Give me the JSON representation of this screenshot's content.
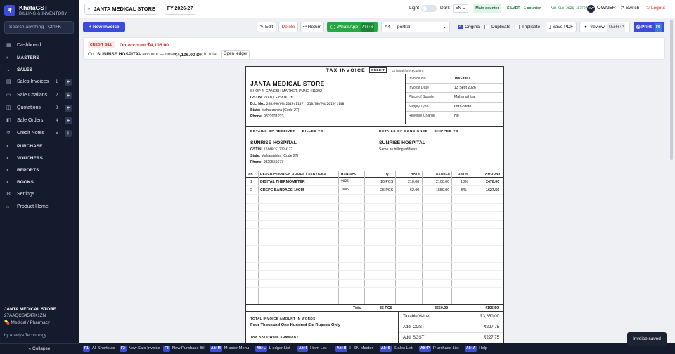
{
  "app": {
    "name": "KhataGST",
    "subtitle": "BILLING & INVENTORY",
    "logo_glyph": "₹"
  },
  "search": {
    "placeholder": "Search anything",
    "shortcut": "Ctrl+K"
  },
  "sidebar": {
    "items": [
      {
        "label": "Dashboard",
        "icon": "grid-icon"
      },
      {
        "label": "MASTERS",
        "section": true
      },
      {
        "label": "SALES",
        "section": true,
        "open": true
      },
      {
        "label": "Sales Invoices",
        "count": "1",
        "icon": "invoice-icon"
      },
      {
        "label": "Sale Challans",
        "count": "2",
        "icon": "challan-icon"
      },
      {
        "label": "Quotations",
        "count": "3",
        "icon": "quotation-icon"
      },
      {
        "label": "Sale Orders",
        "count": "4",
        "icon": "cart-icon"
      },
      {
        "label": "Credit Notes",
        "count": "5",
        "icon": "credit-note-icon"
      },
      {
        "label": "PURCHASE",
        "section": true
      },
      {
        "label": "VOUCHERS",
        "section": true
      },
      {
        "label": "REPORTS",
        "section": true
      },
      {
        "label": "BOOKS",
        "section": true
      },
      {
        "label": "Settings",
        "icon": "gear-icon"
      },
      {
        "label": "Product Home",
        "icon": "home-icon"
      }
    ],
    "footer": {
      "store": "JANTA MEDICAL STORE",
      "gstin": "27AAQCS4547K1ZN",
      "type": "Medical / Pharmacy",
      "by": "by Anedya Technology",
      "collapse": "« Collapse"
    }
  },
  "topbar": {
    "company": "JANTA MEDICAL STORE",
    "fy": "FY 2026-27",
    "theme_light": "Light",
    "theme_dark": "Dark",
    "language": "EN",
    "counter": "Main counter",
    "licence": "SILVER · 1 counter",
    "licence_code": "ANR-SLV-2026-4E7F97",
    "user_initials": "OW",
    "user": "OWNER",
    "switch": "⇄ Switch",
    "logout": "⎋ Logout"
  },
  "toolbar": {
    "new_invoice": "+ New invoice",
    "edit": "✎ Edit",
    "delete": "Delete",
    "return": "↩ Return",
    "whatsapp": "◯ WhatsApp",
    "whatsapp_key": "Alt+W",
    "paper_size": "A4 — portrait",
    "original": "Original",
    "duplicate": "Duplicate",
    "triplicate": "Triplicate",
    "original_checked": true,
    "duplicate_checked": false,
    "triplicate_checked": false,
    "save_pdf": "⤓ Save PDF",
    "preview": "● Preview",
    "preview_key": "Shift+P",
    "print": "⎙ Print",
    "print_key": "F9"
  },
  "banner": {
    "tag": "CREDIT BILL",
    "amount_text": "On account ₹4,106.00",
    "line_prefix": "On",
    "party": "SUNRISE HOSPITAL",
    "line_mid": "'s account — now",
    "balance": "₹4,106.00 DR",
    "line_suffix": "in total.",
    "open_ledger": "Open ledger"
  },
  "invoice": {
    "title": "TAX INVOICE",
    "copy_tag": "CREDIT",
    "copy_label": "Original for Recipient",
    "seller": {
      "name": "JANTA MEDICAL STORE",
      "address": "SHOP 4, GANESH MARKET, PUNE 411002",
      "gstin_label": "GSTIN:",
      "gstin": "27AAQCS4547K1ZN",
      "dl_label": "D.L. No.:",
      "dl": "20B/MH/PN/2019/1147, 21B/MH/PN/2019/1148",
      "state_label": "State:",
      "state": "Maharashtra (Code 27)",
      "phone_label": "Phone:",
      "phone": "9822011223"
    },
    "meta": [
      {
        "k": "Invoice No.",
        "v": "INV-0001"
      },
      {
        "k": "Invoice Date",
        "v": "13 Sept 2026"
      },
      {
        "k": "Place of Supply",
        "v": "Maharashtra"
      },
      {
        "k": "Supply Type",
        "v": "Intra-State"
      },
      {
        "k": "Reverse Charge",
        "v": "No"
      }
    ],
    "receiver": {
      "heading": "DETAILS OF RECEIVER — BILLED TO",
      "name": "SUNRISE HOSPITAL",
      "gstin_label": "GSTIN:",
      "gstin": "27AAPCS1222H1Z2",
      "state_label": "State:",
      "state": "Maharashtra (Code 27)",
      "phone_label": "Phone:",
      "phone": "9820556677"
    },
    "consignee": {
      "heading": "DETAILS OF CONSIGNEE — SHIPPED TO",
      "name": "SUNRISE HOSPITAL",
      "note": "Same as billing address"
    },
    "columns": [
      "SR",
      "DESCRIPTION OF GOODS / SERVICES",
      "HSN/SAC",
      "QTY",
      "RATE",
      "TAXABLE",
      "GST%",
      "AMOUNT"
    ],
    "rows": [
      {
        "sr": "1",
        "desc": "DIGITAL THERMOMETER",
        "hsn": "9025",
        "qty": "10 PCS",
        "rate": "210.00",
        "taxable": "2100.00",
        "gst": "18%",
        "amount": "2478.00"
      },
      {
        "sr": "2",
        "desc": "CREPE BANDAGE 10CM",
        "hsn": "3005",
        "qty": "25 PCS",
        "rate": "62.00",
        "taxable": "1550.00",
        "gst": "5%",
        "amount": "1627.50"
      }
    ],
    "total": {
      "label": "Total",
      "qty": "35 PCS",
      "taxable": "3650.00",
      "amount": "4105.50"
    },
    "words_label": "TOTAL INVOICE AMOUNT IN WORDS",
    "words": "Four Thousand One Hundred Six Rupees Only",
    "rate_summary_label": "TAX RATE-WISE SUMMARY",
    "summary": [
      {
        "k": "Taxable Value",
        "v": "₹3,650.00"
      },
      {
        "k": "Add: CGST",
        "v": "₹227.75"
      },
      {
        "k": "Add: SGST",
        "v": "₹227.75"
      }
    ]
  },
  "statusbar": [
    {
      "key": "F1",
      "label": "All Shortcuts"
    },
    {
      "key": "F2",
      "label": "New Sale Invoice"
    },
    {
      "key": "F3",
      "label": "New Purchase Bill"
    },
    {
      "key": "Alt+M",
      "label": "M aster Menu"
    },
    {
      "key": "Alt+L",
      "label": "L edger List"
    },
    {
      "key": "Alt+I",
      "label": "I tem List"
    },
    {
      "key": "Alt+H",
      "label": "H SN Master"
    },
    {
      "key": "Alt+S",
      "label": "S ales List"
    },
    {
      "key": "Alt+P",
      "label": "P urchase List"
    },
    {
      "key": "Alt+A",
      "label": "Help"
    }
  ],
  "toast": "Invoice saved",
  "colors": {
    "accent": "#3b4cdb",
    "sidebar": "#141b2d",
    "danger": "#c62828",
    "whatsapp": "#27a845",
    "licence": "#1d6e3e"
  }
}
